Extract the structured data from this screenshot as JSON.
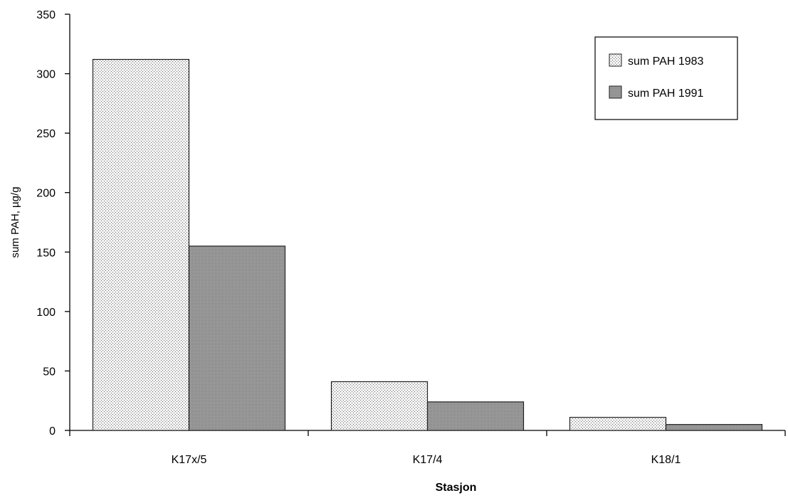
{
  "chart_data": {
    "type": "bar",
    "categories": [
      "K17x/5",
      "K17/4",
      "K18/1"
    ],
    "series": [
      {
        "name": "sum PAH 1983",
        "values": [
          312,
          41,
          11
        ],
        "pattern": "light-dots"
      },
      {
        "name": "sum PAH 1991",
        "values": [
          155,
          24,
          5
        ],
        "pattern": "dark-dots"
      }
    ],
    "xlabel": "Stasjon",
    "ylabel": "sum PAH, µg/g",
    "ylim": [
      0,
      350
    ],
    "yticks": [
      0,
      50,
      100,
      150,
      200,
      250,
      300,
      350
    ],
    "grid": false,
    "legend_position": "top-right",
    "colors": {
      "axis": "#000000",
      "bar_stroke": "#222222",
      "light_fill": "#e9e9e9",
      "dark_fill": "#a8a8a8"
    }
  }
}
